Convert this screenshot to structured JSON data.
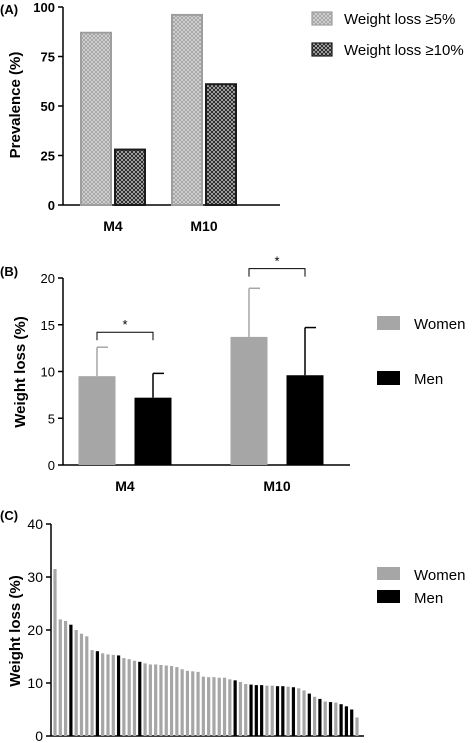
{
  "colors": {
    "axis": "#000000",
    "women": "#a6a6a6",
    "men": "#000000",
    "hatch_light_fill": "#d9d9d9",
    "hatch_light_stroke": "#9e9e9e",
    "hatch_dark_fill": "#bdbdbd",
    "hatch_dark_stroke": "#1a1a1a"
  },
  "chart_data": [
    {
      "panel_label": "(A)",
      "type": "bar",
      "ylabel": "Prevalence (%)",
      "xlabel": "",
      "categories": [
        "M4",
        "M10"
      ],
      "series": [
        {
          "name": "Weight loss ≥5%",
          "values": [
            87,
            96
          ],
          "pattern": "light-hatch"
        },
        {
          "name": "Weight loss ≥10%",
          "values": [
            28,
            61
          ],
          "pattern": "dark-hatch"
        }
      ],
      "ylim": [
        0,
        100
      ],
      "yticks": [
        "0",
        "25",
        "50",
        "75",
        "100"
      ],
      "legend": "top-right",
      "grid": false
    },
    {
      "panel_label": "(B)",
      "type": "bar",
      "ylabel": "Weight loss (%)",
      "xlabel": "",
      "categories": [
        "M4",
        "M10"
      ],
      "series": [
        {
          "name": "Women",
          "values": [
            9.5,
            13.7
          ],
          "error": [
            3.1,
            5.2
          ]
        },
        {
          "name": "Men",
          "values": [
            7.2,
            9.6
          ],
          "error": [
            2.6,
            5.1
          ]
        }
      ],
      "ylim": [
        0,
        20
      ],
      "yticks": [
        "0",
        "5",
        "10",
        "15",
        "20"
      ],
      "significance": [
        {
          "group": "M4",
          "label": "*",
          "y": 14.2
        },
        {
          "group": "M10",
          "label": "*",
          "y": 21.0
        }
      ],
      "legend": "right",
      "grid": false
    },
    {
      "panel_label": "(C)",
      "type": "bar",
      "ylabel": "Weight loss (%)",
      "xlabel": "",
      "ylim": [
        0,
        40
      ],
      "yticks": [
        "0",
        "10",
        "20",
        "30",
        "40"
      ],
      "legend_entries": [
        "Women",
        "Men"
      ],
      "legend": "right",
      "grid": false,
      "bars": [
        {
          "value": 31.5,
          "group": "Women"
        },
        {
          "value": 22.0,
          "group": "Women"
        },
        {
          "value": 21.7,
          "group": "Women"
        },
        {
          "value": 21.0,
          "group": "Men"
        },
        {
          "value": 20.0,
          "group": "Women"
        },
        {
          "value": 19.3,
          "group": "Women"
        },
        {
          "value": 18.8,
          "group": "Women"
        },
        {
          "value": 16.2,
          "group": "Women"
        },
        {
          "value": 16.0,
          "group": "Men"
        },
        {
          "value": 15.6,
          "group": "Women"
        },
        {
          "value": 15.4,
          "group": "Women"
        },
        {
          "value": 15.3,
          "group": "Women"
        },
        {
          "value": 15.2,
          "group": "Men"
        },
        {
          "value": 14.7,
          "group": "Women"
        },
        {
          "value": 14.5,
          "group": "Women"
        },
        {
          "value": 14.2,
          "group": "Women"
        },
        {
          "value": 14.0,
          "group": "Men"
        },
        {
          "value": 13.7,
          "group": "Women"
        },
        {
          "value": 13.5,
          "group": "Women"
        },
        {
          "value": 13.5,
          "group": "Women"
        },
        {
          "value": 13.4,
          "group": "Women"
        },
        {
          "value": 13.3,
          "group": "Women"
        },
        {
          "value": 13.2,
          "group": "Women"
        },
        {
          "value": 13.0,
          "group": "Women"
        },
        {
          "value": 12.6,
          "group": "Women"
        },
        {
          "value": 12.3,
          "group": "Women"
        },
        {
          "value": 12.2,
          "group": "Women"
        },
        {
          "value": 12.1,
          "group": "Women"
        },
        {
          "value": 11.2,
          "group": "Women"
        },
        {
          "value": 11.1,
          "group": "Women"
        },
        {
          "value": 11.1,
          "group": "Women"
        },
        {
          "value": 11.0,
          "group": "Women"
        },
        {
          "value": 11.0,
          "group": "Women"
        },
        {
          "value": 10.7,
          "group": "Women"
        },
        {
          "value": 10.5,
          "group": "Men"
        },
        {
          "value": 10.2,
          "group": "Women"
        },
        {
          "value": 9.8,
          "group": "Women"
        },
        {
          "value": 9.7,
          "group": "Men"
        },
        {
          "value": 9.6,
          "group": "Men"
        },
        {
          "value": 9.6,
          "group": "Men"
        },
        {
          "value": 9.5,
          "group": "Women"
        },
        {
          "value": 9.5,
          "group": "Women"
        },
        {
          "value": 9.4,
          "group": "Men"
        },
        {
          "value": 9.4,
          "group": "Men"
        },
        {
          "value": 9.3,
          "group": "Women"
        },
        {
          "value": 9.2,
          "group": "Men"
        },
        {
          "value": 9.0,
          "group": "Women"
        },
        {
          "value": 8.6,
          "group": "Women"
        },
        {
          "value": 8.0,
          "group": "Men"
        },
        {
          "value": 7.4,
          "group": "Women"
        },
        {
          "value": 7.0,
          "group": "Men"
        },
        {
          "value": 6.5,
          "group": "Women"
        },
        {
          "value": 6.4,
          "group": "Men"
        },
        {
          "value": 6.3,
          "group": "Women"
        },
        {
          "value": 6.0,
          "group": "Men"
        },
        {
          "value": 5.6,
          "group": "Men"
        },
        {
          "value": 5.0,
          "group": "Men"
        },
        {
          "value": 3.5,
          "group": "Women"
        }
      ]
    }
  ]
}
